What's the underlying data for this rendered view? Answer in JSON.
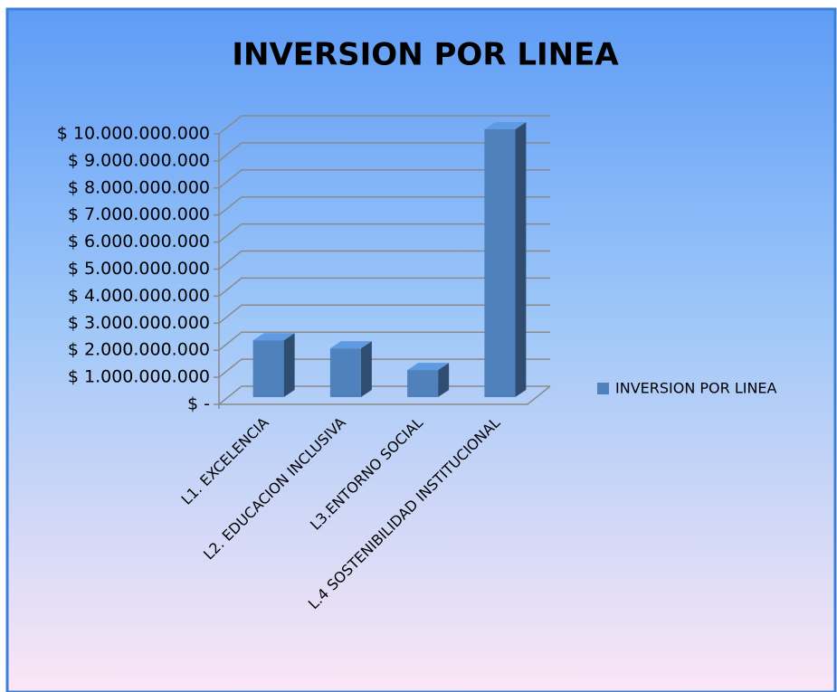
{
  "chart_data": {
    "type": "bar3d",
    "title": "INVERSION POR LINEA",
    "categories": [
      "L1. EXCELENCIA",
      "L2. EDUCACION INCLUSIVA",
      "L3.ENTORNO SOCIAL",
      "L.4 SOSTENIBILIDAD INSTITUCIONAL"
    ],
    "series": [
      {
        "name": "INVERSION POR LINEA",
        "color": "#4f81bd",
        "values": [
          2100000000,
          1800000000,
          1000000000,
          9900000000
        ]
      }
    ],
    "ylim": [
      0,
      10000000000
    ],
    "yticks": [
      {
        "value": 0,
        "label": "$ -"
      },
      {
        "value": 1000000000,
        "label": "$ 1.000.000.000"
      },
      {
        "value": 2000000000,
        "label": "$ 2.000.000.000"
      },
      {
        "value": 3000000000,
        "label": "$ 3.000.000.000"
      },
      {
        "value": 4000000000,
        "label": "$ 4.000.000.000"
      },
      {
        "value": 5000000000,
        "label": "$ 5.000.000.000"
      },
      {
        "value": 6000000000,
        "label": "$ 6.000.000.000"
      },
      {
        "value": 7000000000,
        "label": "$ 7.000.000.000"
      },
      {
        "value": 8000000000,
        "label": "$ 8.000.000.000"
      },
      {
        "value": 9000000000,
        "label": "$ 9.000.000.000"
      },
      {
        "value": 10000000000,
        "label": "$ 10.000.000.000"
      }
    ],
    "grid": true,
    "legend": "right"
  }
}
